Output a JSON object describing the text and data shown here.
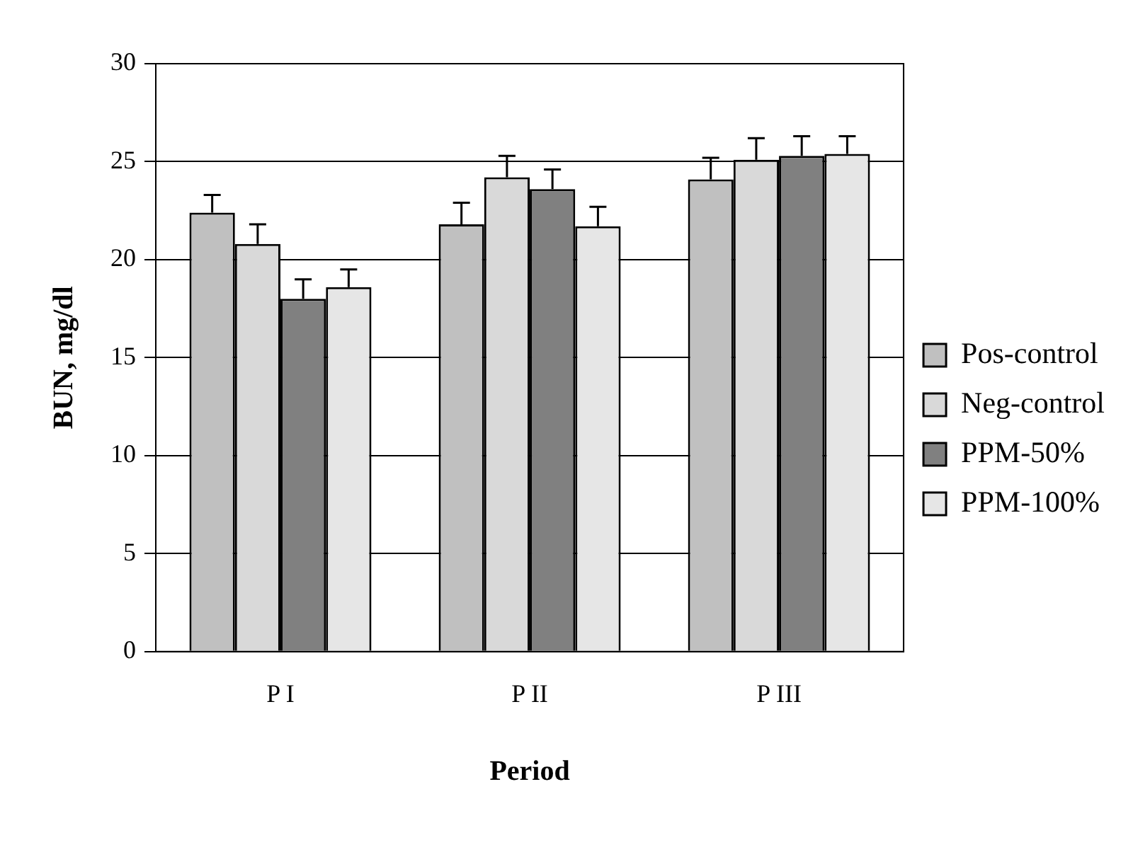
{
  "chart_data": {
    "type": "bar",
    "xlabel": "Period",
    "ylabel": "BUN, mg/dl",
    "categories": [
      "P I",
      "P II",
      "P III"
    ],
    "series": [
      {
        "name": "Pos-control",
        "color": "#c0c0c0",
        "values": [
          22.4,
          21.8,
          24.1
        ],
        "errors": [
          [
            22.4,
            23.3
          ],
          [
            21.8,
            22.9
          ],
          [
            24.1,
            25.2
          ]
        ]
      },
      {
        "name": "Neg-control",
        "color": "#d9d9d9",
        "values": [
          20.8,
          24.2,
          25.1
        ],
        "errors": [
          [
            20.8,
            21.8
          ],
          [
            24.2,
            25.3
          ],
          [
            25.1,
            26.2
          ]
        ]
      },
      {
        "name": "PPM-50%",
        "color": "#808080",
        "values": [
          18.0,
          23.6,
          25.3
        ],
        "errors": [
          [
            18.0,
            19.0
          ],
          [
            23.6,
            24.6
          ],
          [
            25.3,
            26.3
          ]
        ]
      },
      {
        "name": "PPM-100%",
        "color": "#e6e6e6",
        "values": [
          18.6,
          21.7,
          25.4
        ],
        "errors": [
          [
            18.6,
            19.5
          ],
          [
            21.7,
            22.7
          ],
          [
            25.4,
            26.3
          ]
        ]
      }
    ],
    "ylim": [
      0,
      30
    ],
    "yticks": [
      0,
      5,
      10,
      15,
      20,
      25,
      30
    ],
    "grid": "y",
    "legend": "right"
  }
}
